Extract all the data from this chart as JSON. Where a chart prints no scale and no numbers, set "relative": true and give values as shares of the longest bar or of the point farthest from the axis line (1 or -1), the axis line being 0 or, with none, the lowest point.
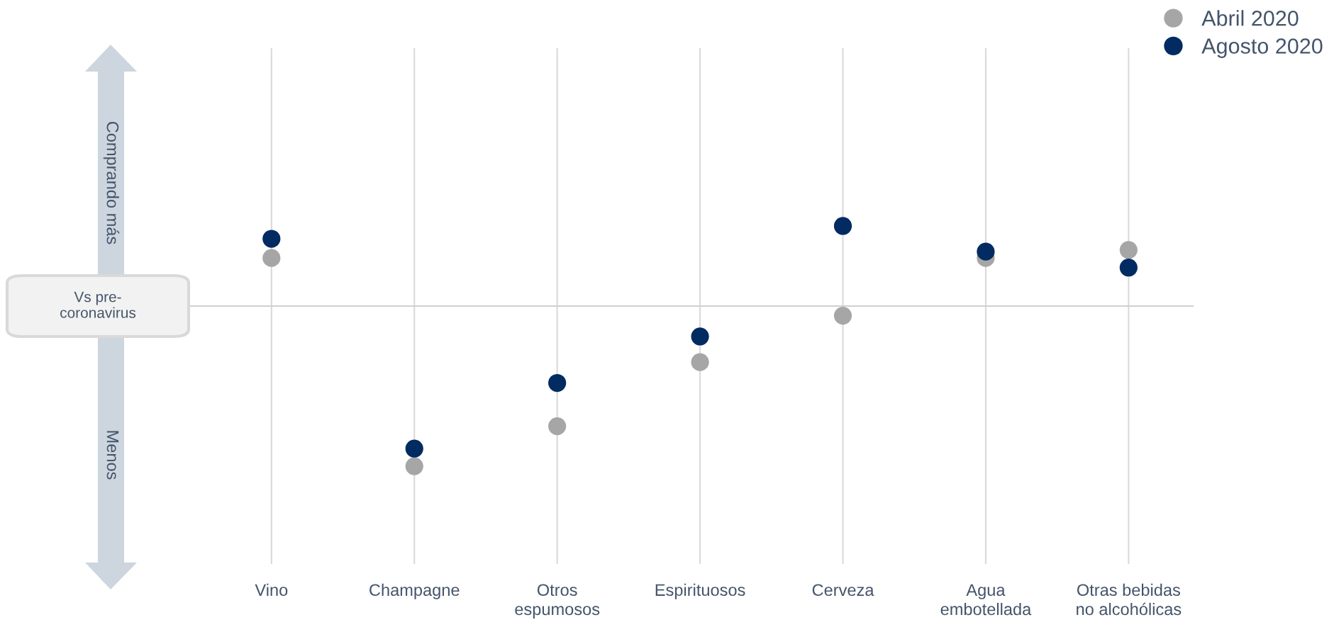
{
  "chart_data": {
    "type": "scatter",
    "relative": true,
    "marker": "circle",
    "grid": "x",
    "legend": "top right",
    "categories": [
      "Vino",
      "Champagne",
      "Otros\nespumosos",
      "Espirituosos",
      "Cerveza",
      "Agua\nembotellada",
      "Otras bebidas\nno alcohólicas"
    ],
    "series": [
      {
        "name": "Abril 2020",
        "color": "#a6a6a6",
        "values": [
          0.3,
          -1,
          -0.75,
          -0.35,
          -0.06,
          0.3,
          0.35
        ]
      },
      {
        "name": "Agosto 2020",
        "color": "#012b61",
        "values": [
          0.42,
          -0.89,
          -0.48,
          -0.19,
          0.5,
          0.34,
          0.24
        ]
      }
    ],
    "ref_lines": [
      {
        "axis": "y",
        "value": 0,
        "label": "Vs pre-\ncoronavirus"
      }
    ],
    "annotations": [
      "Comprando más",
      "Menos"
    ]
  }
}
